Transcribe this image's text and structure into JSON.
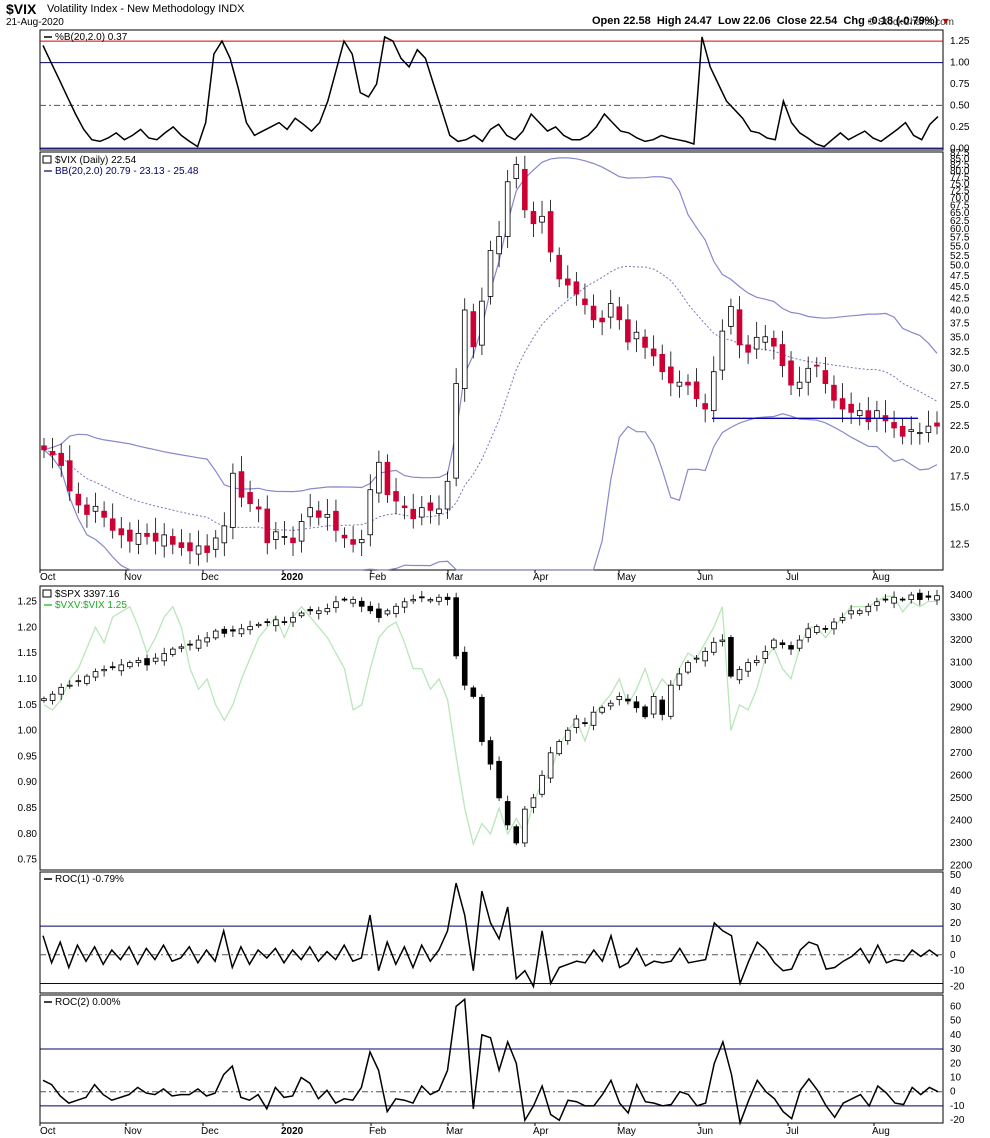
{
  "header": {
    "ticker": "$VIX",
    "name": "Volatility Index - New Methodology",
    "exchange": "INDX",
    "date": "21-Aug-2020",
    "copyright": "© StockCharts.com",
    "open_label": "Open",
    "open": "22.58",
    "high_label": "High",
    "high": "24.47",
    "low_label": "Low",
    "low": "22.06",
    "close_label": "Close",
    "close": "22.54",
    "chg_label": "Chg",
    "chg": "-0.18 (-0.79%)"
  },
  "chart_data": [
    {
      "type": "line",
      "panel": "percent-b",
      "legend": "%B(20,2.0) 0.37",
      "y_ticks": [
        "1.25",
        "1.00",
        "0.75",
        "0.50",
        "0.25",
        "0.00"
      ],
      "ylim": [
        -0.02,
        1.38
      ],
      "reference_lines": {
        "upper_red": 1.25,
        "upper_blue": 1.0,
        "mid_dashed": 0.5,
        "lower_blue": 0.0
      },
      "values": [
        1.2,
        1.0,
        0.8,
        0.6,
        0.4,
        0.22,
        0.1,
        0.08,
        0.12,
        0.18,
        0.1,
        0.15,
        0.22,
        0.12,
        0.1,
        0.18,
        0.25,
        0.15,
        0.08,
        0.02,
        0.3,
        1.1,
        1.25,
        1.05,
        0.7,
        0.3,
        0.15,
        0.2,
        0.25,
        0.3,
        0.22,
        0.35,
        0.28,
        0.2,
        0.3,
        0.55,
        0.9,
        1.25,
        1.1,
        0.65,
        0.6,
        0.75,
        1.3,
        1.25,
        1.05,
        0.95,
        1.15,
        1.05,
        0.75,
        0.45,
        0.15,
        0.08,
        0.1,
        0.15,
        0.08,
        0.22,
        0.28,
        0.15,
        0.1,
        0.2,
        0.4,
        0.3,
        0.2,
        0.25,
        0.15,
        0.1,
        0.1,
        0.15,
        0.25,
        0.4,
        0.3,
        0.2,
        0.18,
        0.12,
        0.08,
        0.1,
        0.15,
        0.12,
        0.1,
        0.08,
        0.05,
        1.3,
        0.95,
        0.75,
        0.55,
        0.45,
        0.35,
        0.2,
        0.18,
        0.12,
        0.1,
        0.55,
        0.3,
        0.18,
        0.12,
        0.05,
        0.02,
        0.1,
        0.18,
        0.1,
        0.15,
        0.2,
        0.12,
        0.08,
        0.15,
        0.22,
        0.3,
        0.15,
        0.1,
        0.28,
        0.37
      ]
    },
    {
      "type": "candlestick",
      "panel": "vix-daily",
      "legend": "$VIX (Daily) 22.54",
      "legend2": "BB(20,2.0) 20.79 - 23.13 - 25.48",
      "y_ticks": [
        "87.5",
        "85.0",
        "82.5",
        "80.0",
        "77.5",
        "75.0",
        "72.5",
        "70.0",
        "67.5",
        "65.0",
        "62.5",
        "60.0",
        "57.5",
        "55.0",
        "52.5",
        "50.0",
        "47.5",
        "45.0",
        "42.5",
        "40.0",
        "37.5",
        "35.0",
        "32.5",
        "30.0",
        "27.5",
        "25.0",
        "22.5",
        "20.0",
        "17.5",
        "15.0",
        "12.5"
      ],
      "log_scale": true,
      "ylim": [
        11,
        88
      ],
      "support_line": {
        "value": 23.4,
        "from": "Jun 1",
        "to": "Aug 20"
      },
      "close": [
        20.0,
        19.5,
        18.5,
        16.3,
        15.2,
        14.5,
        15.1,
        14.3,
        13.4,
        13.1,
        12.7,
        13.2,
        13.0,
        12.7,
        13.1,
        12.5,
        12.3,
        12.1,
        12.4,
        12.0,
        12.9,
        13.7,
        17.8,
        15.8,
        15.3,
        14.9,
        12.6,
        13.3,
        13.0,
        12.6,
        14.0,
        15.0,
        14.3,
        14.5,
        13.4,
        12.9,
        12.5,
        12.8,
        16.4,
        18.8,
        16.0,
        15.5,
        15.0,
        14.2,
        15.0,
        14.8,
        14.9,
        17.1,
        27.8,
        40.1,
        33.4,
        41.9,
        53.9,
        57.8,
        75.9,
        82.7,
        66.0,
        61.6,
        63.9,
        53.5,
        46.8,
        45.4,
        43.4,
        41.2,
        38.2,
        37.8,
        41.4,
        38.2,
        34.2,
        35.9,
        33.3,
        31.9,
        29.5,
        27.9,
        28.0,
        27.6,
        25.8,
        24.5,
        29.5,
        36.1,
        40.8,
        33.7,
        32.5,
        35.0,
        35.1,
        33.5,
        30.4,
        27.6,
        28.0,
        30.0,
        30.4,
        27.8,
        25.6,
        24.5,
        24.1,
        24.3,
        23.0,
        24.3,
        23.1,
        22.3,
        21.4,
        22.1,
        21.8,
        22.5,
        22.5
      ],
      "x_ticks": [
        "Oct",
        "Nov",
        "Dec",
        "2020",
        "Feb",
        "Mar",
        "Apr",
        "May",
        "Jun",
        "Jul",
        "Aug"
      ]
    },
    {
      "type": "candlestick",
      "panel": "spx",
      "legend": "$SPX 3397.16",
      "legend2": "$VXV:$VIX 1.25",
      "y_ticks_right": [
        "3400",
        "3300",
        "3200",
        "3100",
        "3000",
        "2900",
        "2800",
        "2700",
        "2600",
        "2500",
        "2400",
        "2300",
        "2200"
      ],
      "y_ticks_left": [
        "1.25",
        "1.20",
        "1.15",
        "1.10",
        "1.05",
        "1.00",
        "0.95",
        "0.90",
        "0.85",
        "0.80",
        "0.75"
      ],
      "ylim_right": [
        2180,
        3440
      ],
      "ylim_left": [
        0.73,
        1.28
      ],
      "spx_close": [
        2940,
        2960,
        2990,
        3000,
        3020,
        3040,
        3060,
        3070,
        3080,
        3090,
        3100,
        3110,
        3090,
        3120,
        3140,
        3160,
        3170,
        3180,
        3200,
        3210,
        3240,
        3230,
        3240,
        3250,
        3260,
        3270,
        3280,
        3290,
        3280,
        3300,
        3320,
        3330,
        3330,
        3340,
        3370,
        3380,
        3380,
        3350,
        3330,
        3300,
        3330,
        3350,
        3370,
        3380,
        3390,
        3380,
        3390,
        3380,
        3130,
        3000,
        2950,
        2750,
        2650,
        2500,
        2380,
        2300,
        2450,
        2500,
        2600,
        2700,
        2750,
        2800,
        2850,
        2830,
        2880,
        2900,
        2920,
        2950,
        2930,
        2900,
        2860,
        2950,
        2870,
        3000,
        3050,
        3100,
        3120,
        3150,
        3190,
        3200,
        3040,
        3070,
        3100,
        3110,
        3150,
        3200,
        3180,
        3160,
        3200,
        3250,
        3260,
        3250,
        3280,
        3300,
        3330,
        3330,
        3350,
        3370,
        3380,
        3390,
        3380,
        3400,
        3380,
        3390,
        3397
      ],
      "ratio_values": [
        1.05,
        1.04,
        1.06,
        1.1,
        1.12,
        1.16,
        1.2,
        1.17,
        1.22,
        1.23,
        1.24,
        1.2,
        1.15,
        1.18,
        1.22,
        1.24,
        1.2,
        1.12,
        1.08,
        1.1,
        1.05,
        1.02,
        1.05,
        1.1,
        1.14,
        1.18,
        1.2,
        1.22,
        1.18,
        1.22,
        1.24,
        1.22,
        1.2,
        1.18,
        1.15,
        1.12,
        1.04,
        1.05,
        1.12,
        1.18,
        1.2,
        1.21,
        1.17,
        1.12,
        1.12,
        1.08,
        1.1,
        1.06,
        0.95,
        0.85,
        0.78,
        0.82,
        0.8,
        0.85,
        0.8,
        0.83,
        0.8,
        0.86,
        0.9,
        0.92,
        0.97,
        1.0,
        1.02,
        0.98,
        1.03,
        1.05,
        1.07,
        1.1,
        1.05,
        1.08,
        1.12,
        1.07,
        1.1,
        1.08,
        1.12,
        1.15,
        1.14,
        1.17,
        1.2,
        1.24,
        1.0,
        1.05,
        1.04,
        1.08,
        1.14,
        1.16,
        1.12,
        1.1,
        1.16,
        1.2,
        1.2,
        1.18,
        1.2,
        1.22,
        1.24,
        1.24,
        1.24,
        1.25,
        1.26,
        1.26,
        1.23,
        1.25,
        1.24,
        1.25,
        1.25
      ]
    },
    {
      "type": "line",
      "panel": "roc1",
      "legend": "ROC(1) -0.79%",
      "y_ticks": [
        "50",
        "40",
        "30",
        "20",
        "10",
        "0",
        "-10",
        "-20"
      ],
      "ylim": [
        -24,
        52
      ],
      "reference_lines": {
        "upper": 18,
        "zero_dashed": 0,
        "lower": -18
      },
      "values": [
        12,
        -5,
        8,
        -8,
        6,
        -4,
        5,
        -6,
        3,
        -3,
        5,
        -6,
        4,
        -3,
        6,
        -4,
        -2,
        5,
        -5,
        3,
        -4,
        15,
        -8,
        5,
        -6,
        3,
        -2,
        4,
        -5,
        3,
        -3,
        5,
        -4,
        2,
        -3,
        6,
        -4,
        -2,
        25,
        -10,
        8,
        -6,
        5,
        -8,
        6,
        -4,
        3,
        15,
        45,
        25,
        -10,
        40,
        20,
        10,
        30,
        -15,
        -10,
        -20,
        15,
        -18,
        -8,
        -6,
        -4,
        -5,
        3,
        -4,
        12,
        -8,
        -5,
        4,
        -7,
        -4,
        -5,
        -4,
        4,
        -5,
        -4,
        -3,
        20,
        15,
        12,
        -18,
        -4,
        8,
        3,
        -5,
        -10,
        -9,
        3,
        8,
        6,
        -9,
        -8,
        -4,
        -1,
        4,
        -5,
        6,
        -5,
        -3,
        -4,
        3,
        -1,
        3,
        -1
      ]
    },
    {
      "type": "line",
      "panel": "roc2",
      "legend": "ROC(2) 0.00%",
      "y_ticks": [
        "60",
        "50",
        "40",
        "30",
        "20",
        "10",
        "0",
        "-10",
        "-20"
      ],
      "ylim": [
        -22,
        68
      ],
      "reference_lines": {
        "upper": 30,
        "zero_dashed": 0,
        "lower": -10
      },
      "values": [
        8,
        5,
        -3,
        -8,
        -6,
        -4,
        5,
        -2,
        -6,
        -4,
        -2,
        3,
        -1,
        -2,
        2,
        -3,
        -2,
        -2,
        2,
        -3,
        -1,
        12,
        18,
        -4,
        -6,
        -2,
        -12,
        3,
        -4,
        -3,
        10,
        6,
        -5,
        1,
        -8,
        -5,
        -6,
        3,
        28,
        15,
        -14,
        -5,
        -6,
        -8,
        4,
        -2,
        1,
        15,
        60,
        65,
        -12,
        40,
        38,
        15,
        35,
        20,
        -20,
        -10,
        4,
        -16,
        -20,
        -6,
        -7,
        -10,
        -10,
        -2,
        8,
        -8,
        -15,
        5,
        -7,
        -8,
        -10,
        -9,
        0,
        -2,
        -10,
        -8,
        20,
        35,
        12,
        -22,
        -6,
        8,
        0,
        -5,
        -14,
        -19,
        1,
        9,
        1,
        -10,
        -18,
        -8,
        -5,
        -2,
        -10,
        4,
        -1,
        -8,
        -9,
        3,
        -2,
        3,
        0
      ]
    }
  ]
}
